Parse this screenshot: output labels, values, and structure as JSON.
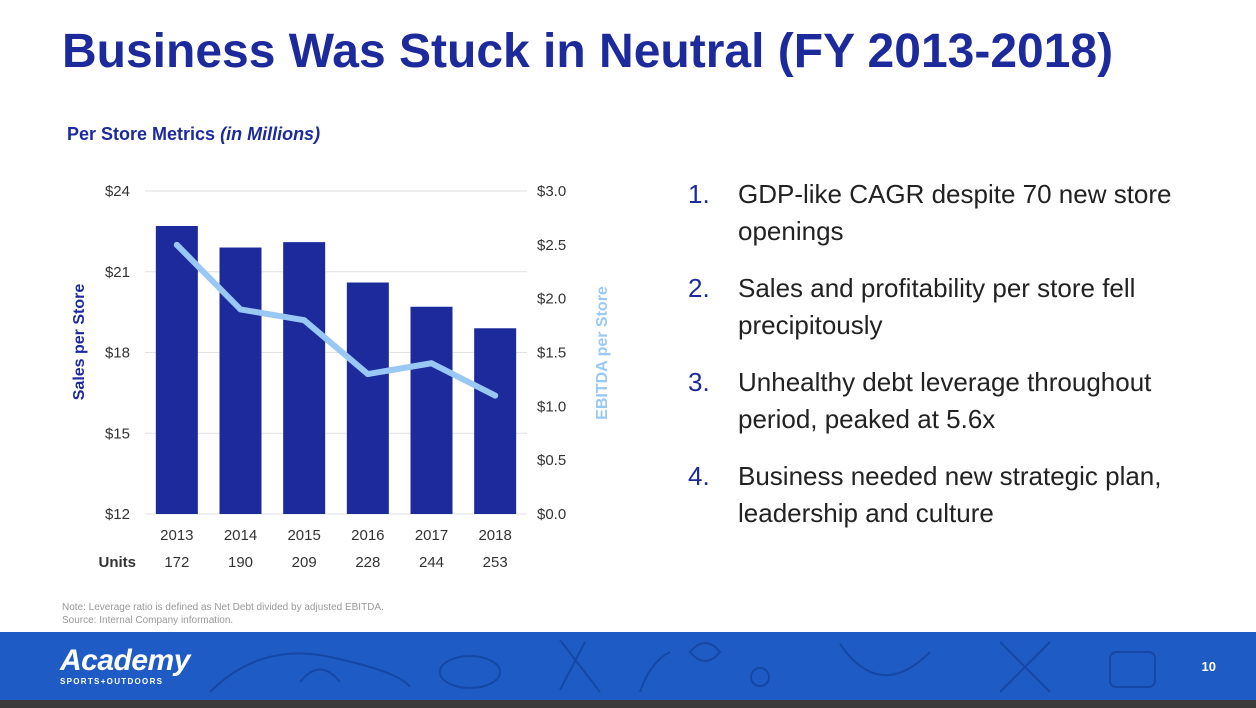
{
  "title": "Business Was Stuck in Neutral (FY 2013-2018)",
  "chart_subtitle": "Per Store Metrics",
  "chart_subtitle_italic": "(in Millions)",
  "chart_data": {
    "type": "bar+line",
    "categories": [
      "2013",
      "2014",
      "2015",
      "2016",
      "2017",
      "2018"
    ],
    "series": [
      {
        "name": "Sales per Store",
        "type": "bar",
        "axis": "left",
        "color": "#1c2a9c",
        "values": [
          22.7,
          21.9,
          22.1,
          20.6,
          19.7,
          18.9
        ]
      },
      {
        "name": "EBITDA per Store",
        "type": "line",
        "axis": "right",
        "color": "#9ac8f5",
        "values": [
          2.5,
          1.9,
          1.8,
          1.3,
          1.4,
          1.1
        ]
      }
    ],
    "ylabel": "Sales  per Store",
    "y2label": "EBITDA per Store",
    "ylim": [
      12,
      24
    ],
    "y2lim": [
      0,
      3
    ],
    "yticks": [
      "$12",
      "$15",
      "$18",
      "$21",
      "$24"
    ],
    "y2ticks": [
      "$0.0",
      "$0.5",
      "$1.0",
      "$1.5",
      "$2.0",
      "$2.5",
      "$3.0"
    ],
    "units_label": "Units",
    "units": [
      "172",
      "190",
      "209",
      "228",
      "244",
      "253"
    ]
  },
  "bullets": [
    {
      "num": "1.",
      "text": "GDP-like CAGR despite 70 new store openings"
    },
    {
      "num": "2.",
      "text": "Sales and profitability per store fell precipitously"
    },
    {
      "num": "3.",
      "text": "Unhealthy debt leverage throughout period, peaked at 5.6x"
    },
    {
      "num": "4.",
      "text": "Business needed new strategic plan, leadership and culture"
    }
  ],
  "notes": {
    "line1": "Note: Leverage ratio is defined as Net Debt divided by adjusted EBITDA.",
    "line2": "Source: Internal Company information."
  },
  "footer": {
    "logo_main": "Academy",
    "logo_sub": "SPORTS+OUTDOORS",
    "page_number": "10"
  },
  "colors": {
    "brand": "#1c2a9c",
    "line": "#9ac8f5",
    "footer": "#1f5bc4"
  }
}
